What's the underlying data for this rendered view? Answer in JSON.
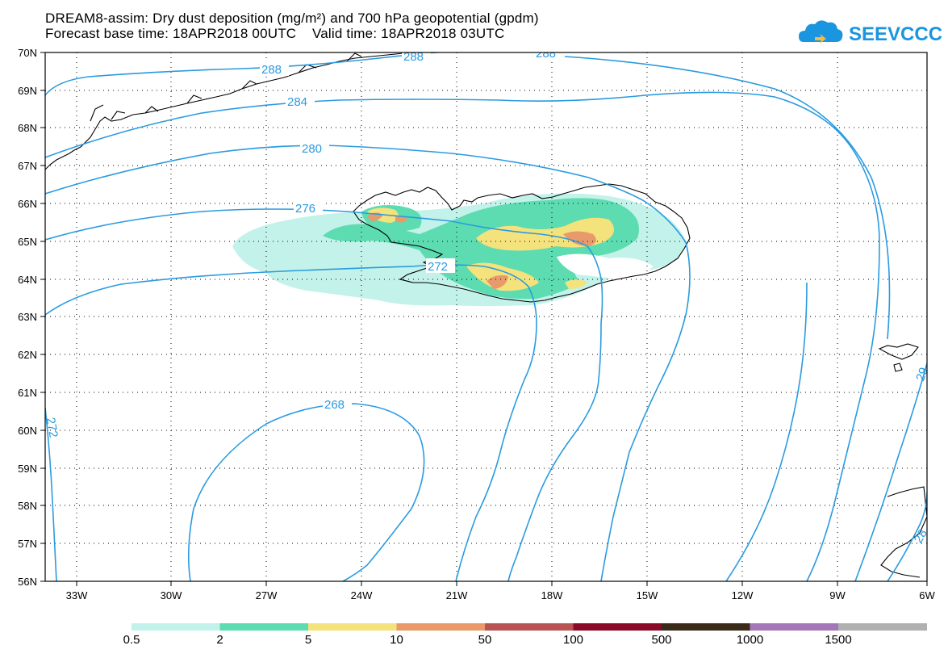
{
  "header": {
    "title_line1": "DREAM8-assim: Dry dust deposition (mg/m²) and 700 hPa geopotential (gpdm)",
    "title_line2": "Forecast base time: 18APR2018 00UTC    Valid time: 18APR2018 03UTC",
    "logo_text": "SEEVCCC",
    "logo_icon": "cloud-icon"
  },
  "map": {
    "lat_labels": [
      "70N",
      "69N",
      "68N",
      "67N",
      "66N",
      "65N",
      "64N",
      "63N",
      "62N",
      "61N",
      "60N",
      "59N",
      "58N",
      "57N",
      "56N"
    ],
    "lon_labels": [
      "33W",
      "30W",
      "27W",
      "24W",
      "21W",
      "18W",
      "15W",
      "12W",
      "9W",
      "6W"
    ],
    "lat_range": [
      56,
      70
    ],
    "lon_range": [
      -34.5,
      -6
    ],
    "grid": "dotted",
    "contour_color": "#2a9be0",
    "contour_labels": [
      "288",
      "288",
      "288",
      "284",
      "280",
      "276",
      "272",
      "268",
      "272",
      "29",
      "28"
    ]
  },
  "legend": {
    "colors": [
      "#c2f2ea",
      "#5cdcb0",
      "#f4e27c",
      "#e89a6a",
      "#b85454",
      "#8a0a2a",
      "#3a2a1a",
      "#a478b8",
      "#b0b0b0"
    ],
    "labels": [
      "0.5",
      "2",
      "5",
      "10",
      "50",
      "100",
      "500",
      "1000",
      "1500"
    ]
  }
}
